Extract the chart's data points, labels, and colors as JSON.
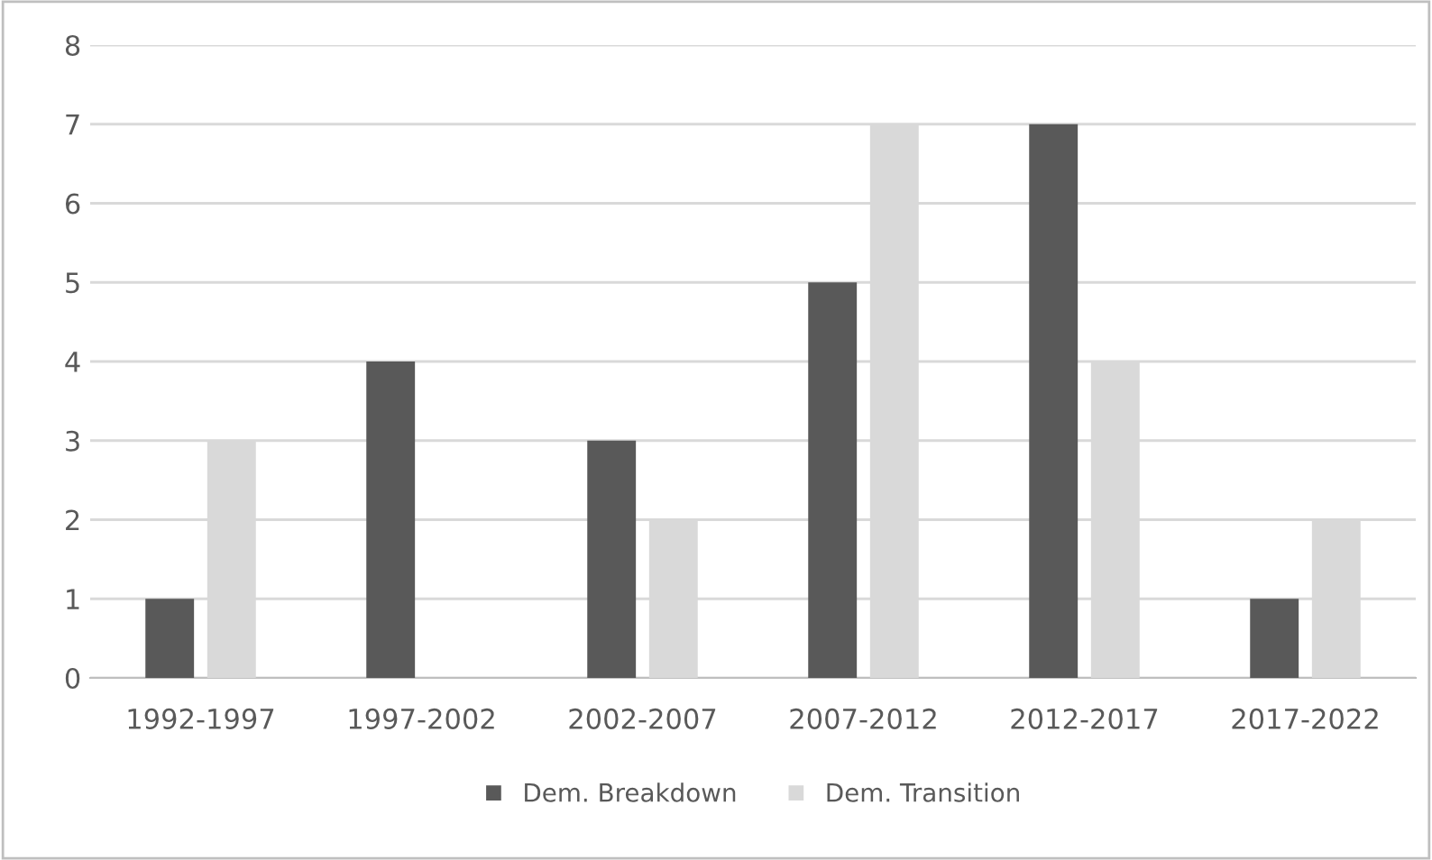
{
  "chart_data": {
    "type": "bar",
    "categories": [
      "1992-1997",
      "1997-2002",
      "2002-2007",
      "2007-2012",
      "2012-2017",
      "2017-2022"
    ],
    "series": [
      {
        "name": "Dem. Breakdown",
        "color": "#595959",
        "values": [
          1,
          4,
          3,
          5,
          7,
          1
        ]
      },
      {
        "name": "Dem. Transition",
        "color": "#d9d9d9",
        "values": [
          3,
          0,
          2,
          7,
          4,
          2
        ]
      }
    ],
    "ylim": [
      0,
      8
    ],
    "yticks": [
      0,
      1,
      2,
      3,
      4,
      5,
      6,
      7,
      8
    ],
    "grid": "y",
    "legend": "bottom"
  }
}
